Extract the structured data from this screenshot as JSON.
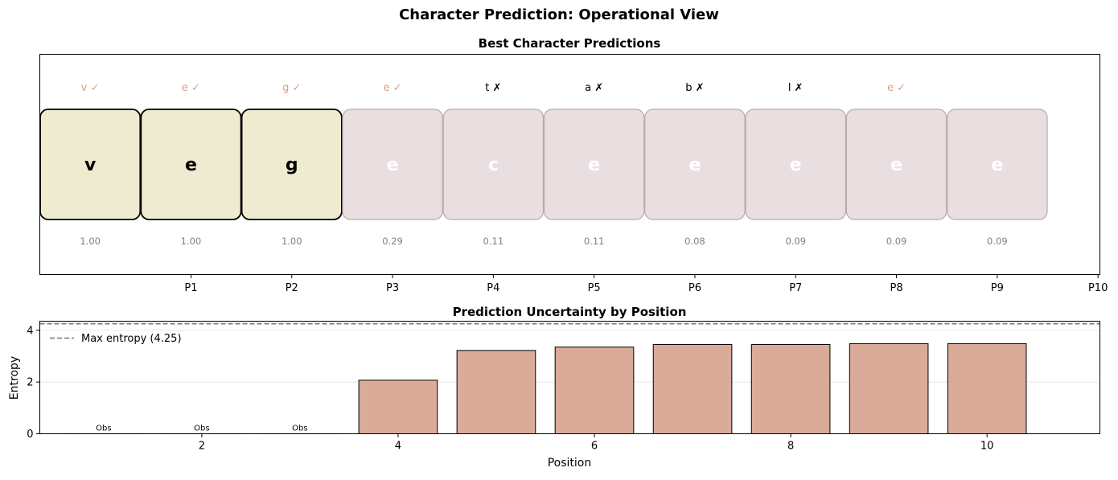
{
  "figure_title": "Character Prediction: Operational View",
  "chart_data": [
    {
      "type": "table",
      "title": "Best Character Predictions",
      "tick_labels": [
        "P1",
        "P2",
        "P3",
        "P4",
        "P5",
        "P6",
        "P7",
        "P8",
        "P9",
        "P10"
      ],
      "cells": [
        {
          "char": "v",
          "check": "v ✓",
          "prob": "1.00",
          "observed": true,
          "correct": true
        },
        {
          "char": "e",
          "check": "e ✓",
          "prob": "1.00",
          "observed": true,
          "correct": true
        },
        {
          "char": "g",
          "check": "g ✓",
          "prob": "1.00",
          "observed": true,
          "correct": true
        },
        {
          "char": "e",
          "check": "e ✓",
          "prob": "0.29",
          "observed": false,
          "correct": true
        },
        {
          "char": "c",
          "check": "t ✗",
          "prob": "0.11",
          "observed": false,
          "correct": false
        },
        {
          "char": "e",
          "check": "a ✗",
          "prob": "0.11",
          "observed": false,
          "correct": false
        },
        {
          "char": "e",
          "check": "b ✗",
          "prob": "0.08",
          "observed": false,
          "correct": false
        },
        {
          "char": "e",
          "check": "l ✗",
          "prob": "0.09",
          "observed": false,
          "correct": false
        },
        {
          "char": "e",
          "check": "e ✓",
          "prob": "0.09",
          "observed": false,
          "correct": true
        },
        {
          "char": "e",
          "check": "",
          "prob": "0.09",
          "observed": false,
          "correct": null
        }
      ]
    },
    {
      "type": "bar",
      "title": "Prediction Uncertainty by Position",
      "xlabel": "Position",
      "ylabel": "Entropy",
      "x": [
        1,
        2,
        3,
        4,
        5,
        6,
        7,
        8,
        9,
        10
      ],
      "values": [
        0,
        0,
        0,
        2.07,
        3.22,
        3.35,
        3.45,
        3.45,
        3.48,
        3.48
      ],
      "bar_labels": [
        "Obs",
        "Obs",
        "Obs",
        "",
        "",
        "",
        "",
        "",
        "",
        ""
      ],
      "xlim": [
        0.35,
        11.15
      ],
      "ylim": [
        0,
        4.25
      ],
      "xticks": [
        2,
        4,
        6,
        8,
        10
      ],
      "yticks": [
        0,
        2,
        4
      ],
      "reference_line": {
        "value": 4.25,
        "label": "Max entropy (4.25)"
      },
      "legend_position": "top-left",
      "grid": "horizontal"
    }
  ],
  "colors": {
    "observed_fill": "#efebd0",
    "predicted_fill": "#eadfe0",
    "bar_fill": "#d9ab98",
    "correct_text": "#d99f86",
    "prob_text": "#808080",
    "max_line": "#777777"
  }
}
